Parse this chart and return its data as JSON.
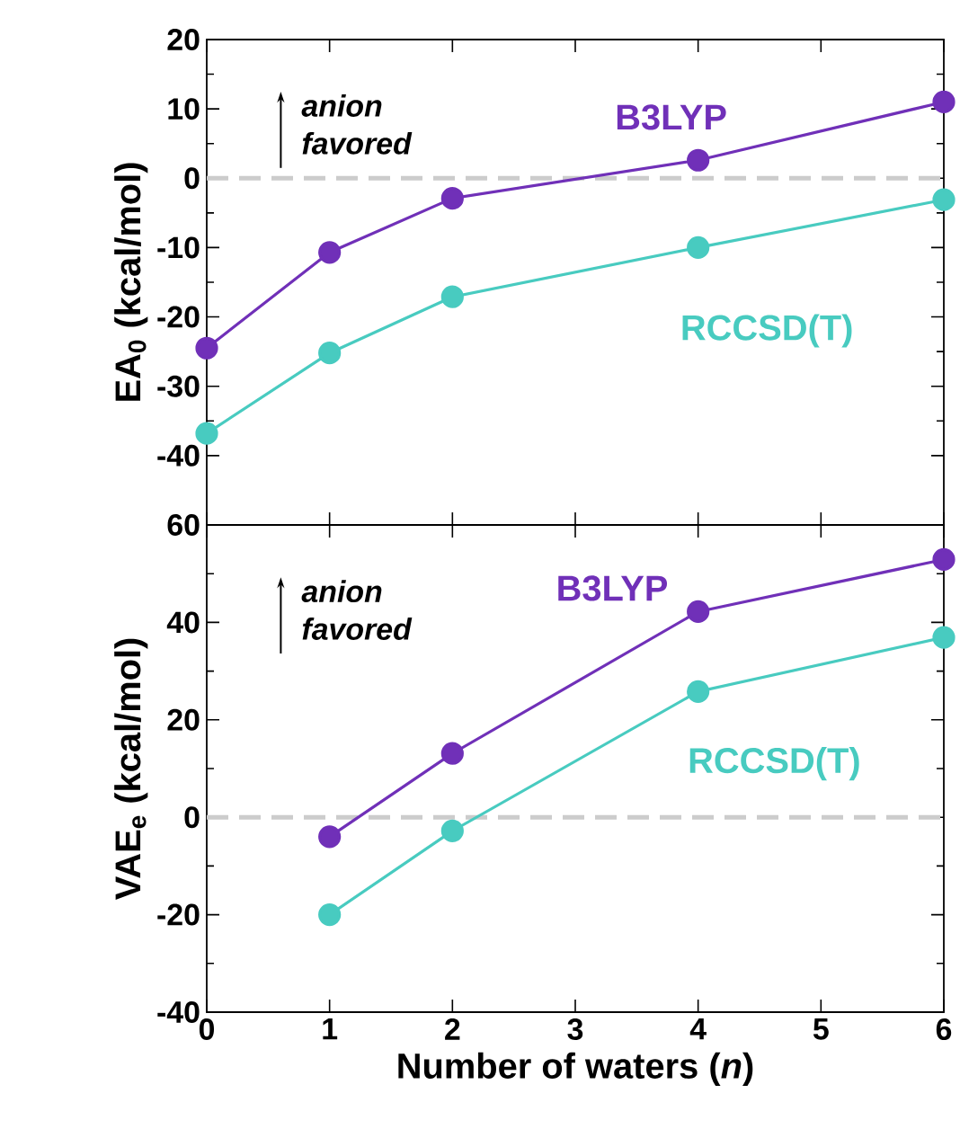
{
  "chart_data": [
    {
      "type": "line",
      "ylabel": "EA$_{0}$ (kcal/mol)",
      "x": [
        0,
        1,
        2,
        4,
        6
      ],
      "series": [
        {
          "name": "B3LYP",
          "color": "#7030b8",
          "values": [
            -24.5,
            -10.7,
            -2.9,
            2.6,
            11.0
          ]
        },
        {
          "name": "RCCSD(T)",
          "color": "#48cbc0",
          "values": [
            -36.8,
            -25.2,
            -17.1,
            -10.0,
            -3.1
          ]
        }
      ],
      "xlim": [
        0,
        6
      ],
      "xticks": [
        0,
        1,
        2,
        3,
        4,
        5,
        6
      ],
      "ylim": [
        -50,
        20
      ],
      "yticks": [
        -40,
        -30,
        -20,
        -10,
        0,
        10,
        20
      ],
      "tick_labels": "y",
      "marker": "circle",
      "line_style": "solid",
      "ref_lines": [
        {
          "axis": "y",
          "value": 0,
          "color": "#cccccc",
          "line_style": "dashed"
        }
      ],
      "annotations": [
        "anion favored"
      ]
    },
    {
      "type": "line",
      "ylabel": "VAE$_{e}$ (kcal/mol)",
      "xlabel": "Number of waters (*n*)",
      "x": [
        1,
        2,
        4,
        6
      ],
      "series": [
        {
          "name": "B3LYP",
          "color": "#7030b8",
          "values": [
            -4.0,
            13.1,
            42.2,
            52.9
          ]
        },
        {
          "name": "RCCSD(T)",
          "color": "#48cbc0",
          "values": [
            -20.0,
            -2.8,
            25.8,
            36.9
          ]
        }
      ],
      "xlim": [
        0,
        6
      ],
      "xticks": [
        0,
        1,
        2,
        3,
        4,
        5,
        6
      ],
      "ylim": [
        -40,
        60
      ],
      "yticks": [
        -40,
        -20,
        0,
        20,
        40,
        60
      ],
      "marker": "circle",
      "line_style": "solid",
      "ref_lines": [
        {
          "axis": "y",
          "value": 0,
          "color": "#cccccc",
          "line_style": "dashed"
        }
      ],
      "annotations": [
        "anion favored"
      ]
    }
  ]
}
